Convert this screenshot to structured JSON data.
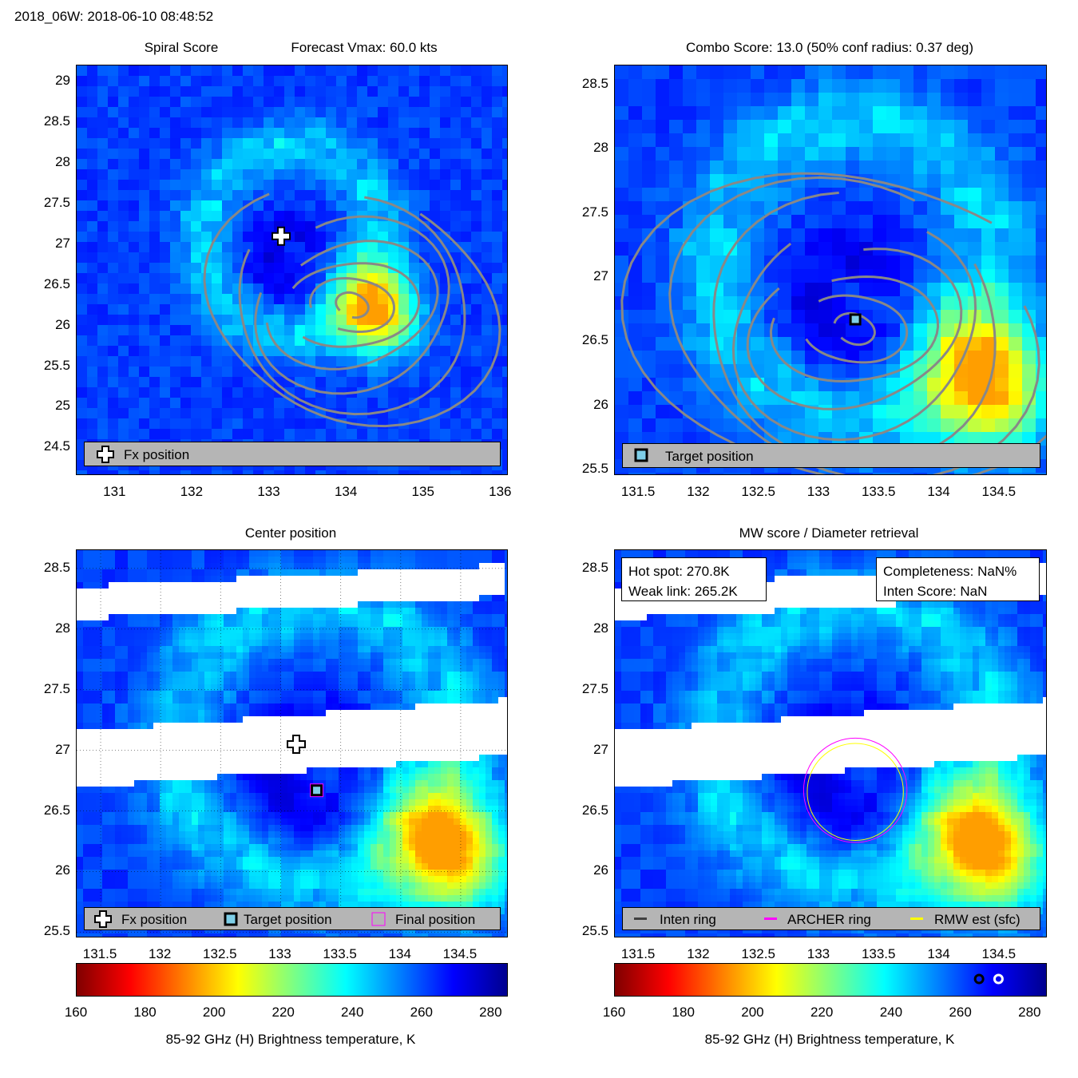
{
  "header": {
    "storm_time": "2018_06W: 2018-06-10 08:48:52"
  },
  "colors": {
    "background": "#ffffff",
    "contour": "#888888",
    "legend_bg": "#b5b5b5",
    "inten_ring": "#404040",
    "archer_ring": "#ff00ff",
    "rmw_ring": "#ffff00",
    "missing_swath": "#ffffff"
  },
  "colormap": {
    "name": "jet",
    "range": [
      160,
      285
    ],
    "stops": [
      "#7f0000",
      "#ff0000",
      "#ff8000",
      "#ffff00",
      "#80ff80",
      "#00ffff",
      "#0080ff",
      "#0000ff",
      "#00008f"
    ]
  },
  "panels": {
    "spiral": {
      "title_left": "Spiral Score",
      "title_right": "Forecast Vmax: 60.0 kts",
      "x_ticks": [
        "131",
        "132",
        "133",
        "134",
        "135",
        "136"
      ],
      "y_ticks": [
        "29",
        "28.5",
        "28",
        "27.5",
        "27",
        "26.5",
        "26",
        "25.5",
        "25",
        "24.5"
      ],
      "legend": {
        "icon": "plus-icon",
        "label": "Fx position"
      },
      "markers": {
        "fx_position": {
          "lon": 133.15,
          "lat": 27.1,
          "icon": "plus-icon"
        }
      }
    },
    "combo": {
      "title": "Combo Score: 13.0  (50% conf radius: 0.37 deg)",
      "x_ticks": [
        "131.5",
        "132",
        "132.5",
        "133",
        "133.5",
        "134",
        "134.5"
      ],
      "y_ticks": [
        "28.5",
        "28",
        "27.5",
        "27",
        "26.5",
        "26",
        "25.5"
      ],
      "legend": {
        "icon": "square-icon",
        "label": "Target position"
      },
      "markers": {
        "target_position": {
          "lon": 133.3,
          "lat": 26.67,
          "icon": "square-icon"
        }
      }
    },
    "center": {
      "title": "Center position",
      "x_ticks": [
        "131.5",
        "132",
        "132.5",
        "133",
        "133.5",
        "134",
        "134.5"
      ],
      "y_ticks": [
        "28.5",
        "28",
        "27.5",
        "27",
        "26.5",
        "26",
        "25.5"
      ],
      "legend": [
        {
          "icon": "plus-icon",
          "label": "Fx position"
        },
        {
          "icon": "square-icon",
          "label": "Target position"
        },
        {
          "icon": "magenta-square-icon",
          "label": "Final position"
        }
      ],
      "markers": {
        "fx_position": {
          "lon": 133.13,
          "lat": 27.05
        },
        "target_position": {
          "lon": 133.3,
          "lat": 26.67
        }
      }
    },
    "mw": {
      "title": "MW score / Diameter retrieval",
      "info_left": [
        "Hot spot: 270.8K",
        "Weak link: 265.2K"
      ],
      "info_right": [
        "Completeness: NaN%",
        "Inten Score: NaN"
      ],
      "x_ticks": [
        "131.5",
        "132",
        "132.5",
        "133",
        "133.5",
        "134",
        "134.5"
      ],
      "y_ticks": [
        "28.5",
        "28",
        "27.5",
        "27",
        "26.5",
        "26",
        "25.5"
      ],
      "legend": [
        {
          "icon": "inten-ring-swatch",
          "label": "Inten ring"
        },
        {
          "icon": "archer-ring-swatch",
          "label": "ARCHER ring"
        },
        {
          "icon": "rmw-ring-swatch",
          "label": "RMW est (sfc)"
        }
      ],
      "rings": {
        "archer": {
          "lon": 133.3,
          "lat": 26.67,
          "radius_deg": 0.43
        },
        "rmw": {
          "lon": 133.3,
          "lat": 26.67,
          "radius_deg": 0.4
        }
      },
      "colorbar_markers": {
        "hot_spot_K": 270.8,
        "weak_link_K": 265.2
      }
    }
  },
  "colorbars": {
    "ticks": [
      "160",
      "180",
      "200",
      "220",
      "240",
      "260",
      "280"
    ],
    "label": "85-92 GHz (H) Brightness temperature, K"
  },
  "chart_data": [
    {
      "type": "heatmap",
      "title": "Spiral Score",
      "subtitle": "Forecast Vmax: 60.0 kts",
      "xlim": [
        130.5,
        136.1
      ],
      "ylim": [
        24.15,
        29.2
      ],
      "grid": false,
      "legend": [
        "Fx position"
      ],
      "features": {
        "warm_band_K": [
          200,
          215
        ],
        "warm_band_center": {
          "lon": 134.45,
          "lat": 26.1
        }
      },
      "points": [
        {
          "name": "Fx position",
          "x": 133.15,
          "y": 27.1
        }
      ]
    },
    {
      "type": "heatmap",
      "title": "Combo Score: 13.0  (50% conf radius: 0.37 deg)",
      "xlim": [
        131.3,
        134.9
      ],
      "ylim": [
        25.45,
        28.65
      ],
      "grid": false,
      "legend": [
        "Target position"
      ],
      "points": [
        {
          "name": "Target position",
          "x": 133.3,
          "y": 26.67
        }
      ]
    },
    {
      "type": "heatmap",
      "title": "Center position",
      "xlim": [
        131.3,
        134.9
      ],
      "ylim": [
        25.45,
        28.65
      ],
      "grid": true,
      "legend": [
        "Fx position",
        "Target position",
        "Final position"
      ],
      "points": [
        {
          "name": "Fx position",
          "x": 133.13,
          "y": 27.05
        },
        {
          "name": "Target position",
          "x": 133.3,
          "y": 26.67
        }
      ]
    },
    {
      "type": "heatmap",
      "title": "MW score / Diameter retrieval",
      "xlim": [
        131.3,
        134.9
      ],
      "ylim": [
        25.45,
        28.65
      ],
      "grid": false,
      "legend": [
        "Inten ring",
        "ARCHER ring",
        "RMW est (sfc)"
      ],
      "annotations": [
        "Hot spot: 270.8K",
        "Weak link: 265.2K",
        "Completeness: NaN%",
        "Inten Score: NaN"
      ]
    }
  ]
}
